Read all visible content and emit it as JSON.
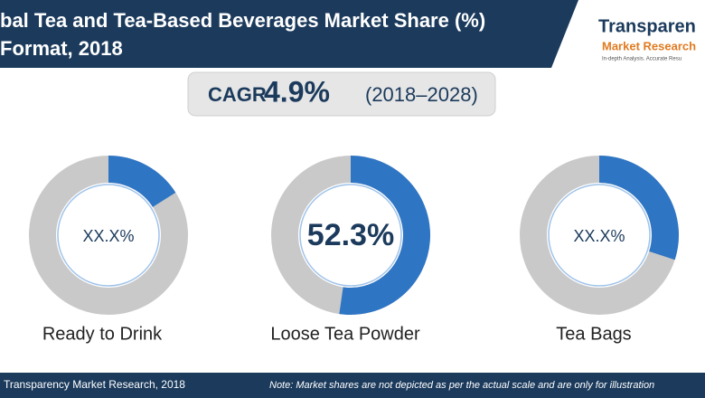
{
  "header": {
    "title_line1": "bal Tea and Tea-Based Beverages Market Share (%)",
    "title_line2": "Format, 2018"
  },
  "logo": {
    "name1": "Transparen",
    "name2": "Market Research",
    "tagline": "In-depth Analysis. Accurate Resu"
  },
  "cagr": {
    "label": "CAGR",
    "value": "4.9%",
    "period": "(2018–2028)"
  },
  "chart_data": [
    {
      "type": "donut",
      "title": "Ready to Drink",
      "values": [
        16
      ],
      "value_labels": [
        "XX.X%"
      ],
      "color": "#2e75c4",
      "highlight": false
    },
    {
      "type": "donut",
      "title": "Loose Tea Powder",
      "values": [
        52.3
      ],
      "value_labels": [
        "52.3%"
      ],
      "color": "#2e75c4",
      "highlight": true
    },
    {
      "type": "donut",
      "title": "Tea Bags",
      "values": [
        30
      ],
      "value_labels": [
        "XX.X%"
      ],
      "color": "#2e75c4",
      "highlight": false
    }
  ],
  "footer": {
    "source": "Transparency Market Research, 2018",
    "note": "Note: Market shares are not depicted as per the actual scale and are only for illustration"
  }
}
